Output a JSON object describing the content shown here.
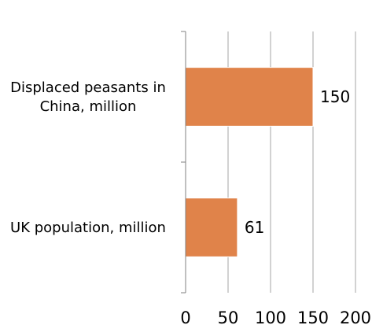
{
  "chart_data": {
    "type": "bar",
    "orientation": "horizontal",
    "categories": [
      [
        "Displaced peasants in",
        "China, million"
      ],
      [
        "UK population, million"
      ]
    ],
    "values": [
      150,
      61
    ],
    "data_labels": [
      "150",
      "61"
    ],
    "xlim": [
      0,
      200
    ],
    "xticks": [
      0,
      50,
      100,
      150,
      200
    ],
    "xtick_labels": [
      "0",
      "50",
      "100",
      "150",
      "200"
    ],
    "title": "",
    "xlabel": "",
    "ylabel": "",
    "grid": true,
    "bar_color": "#E0834A",
    "bar_border_color": "#FFFFFF",
    "gridline_color": "#A6A6A6",
    "axis_color": "#808080"
  }
}
